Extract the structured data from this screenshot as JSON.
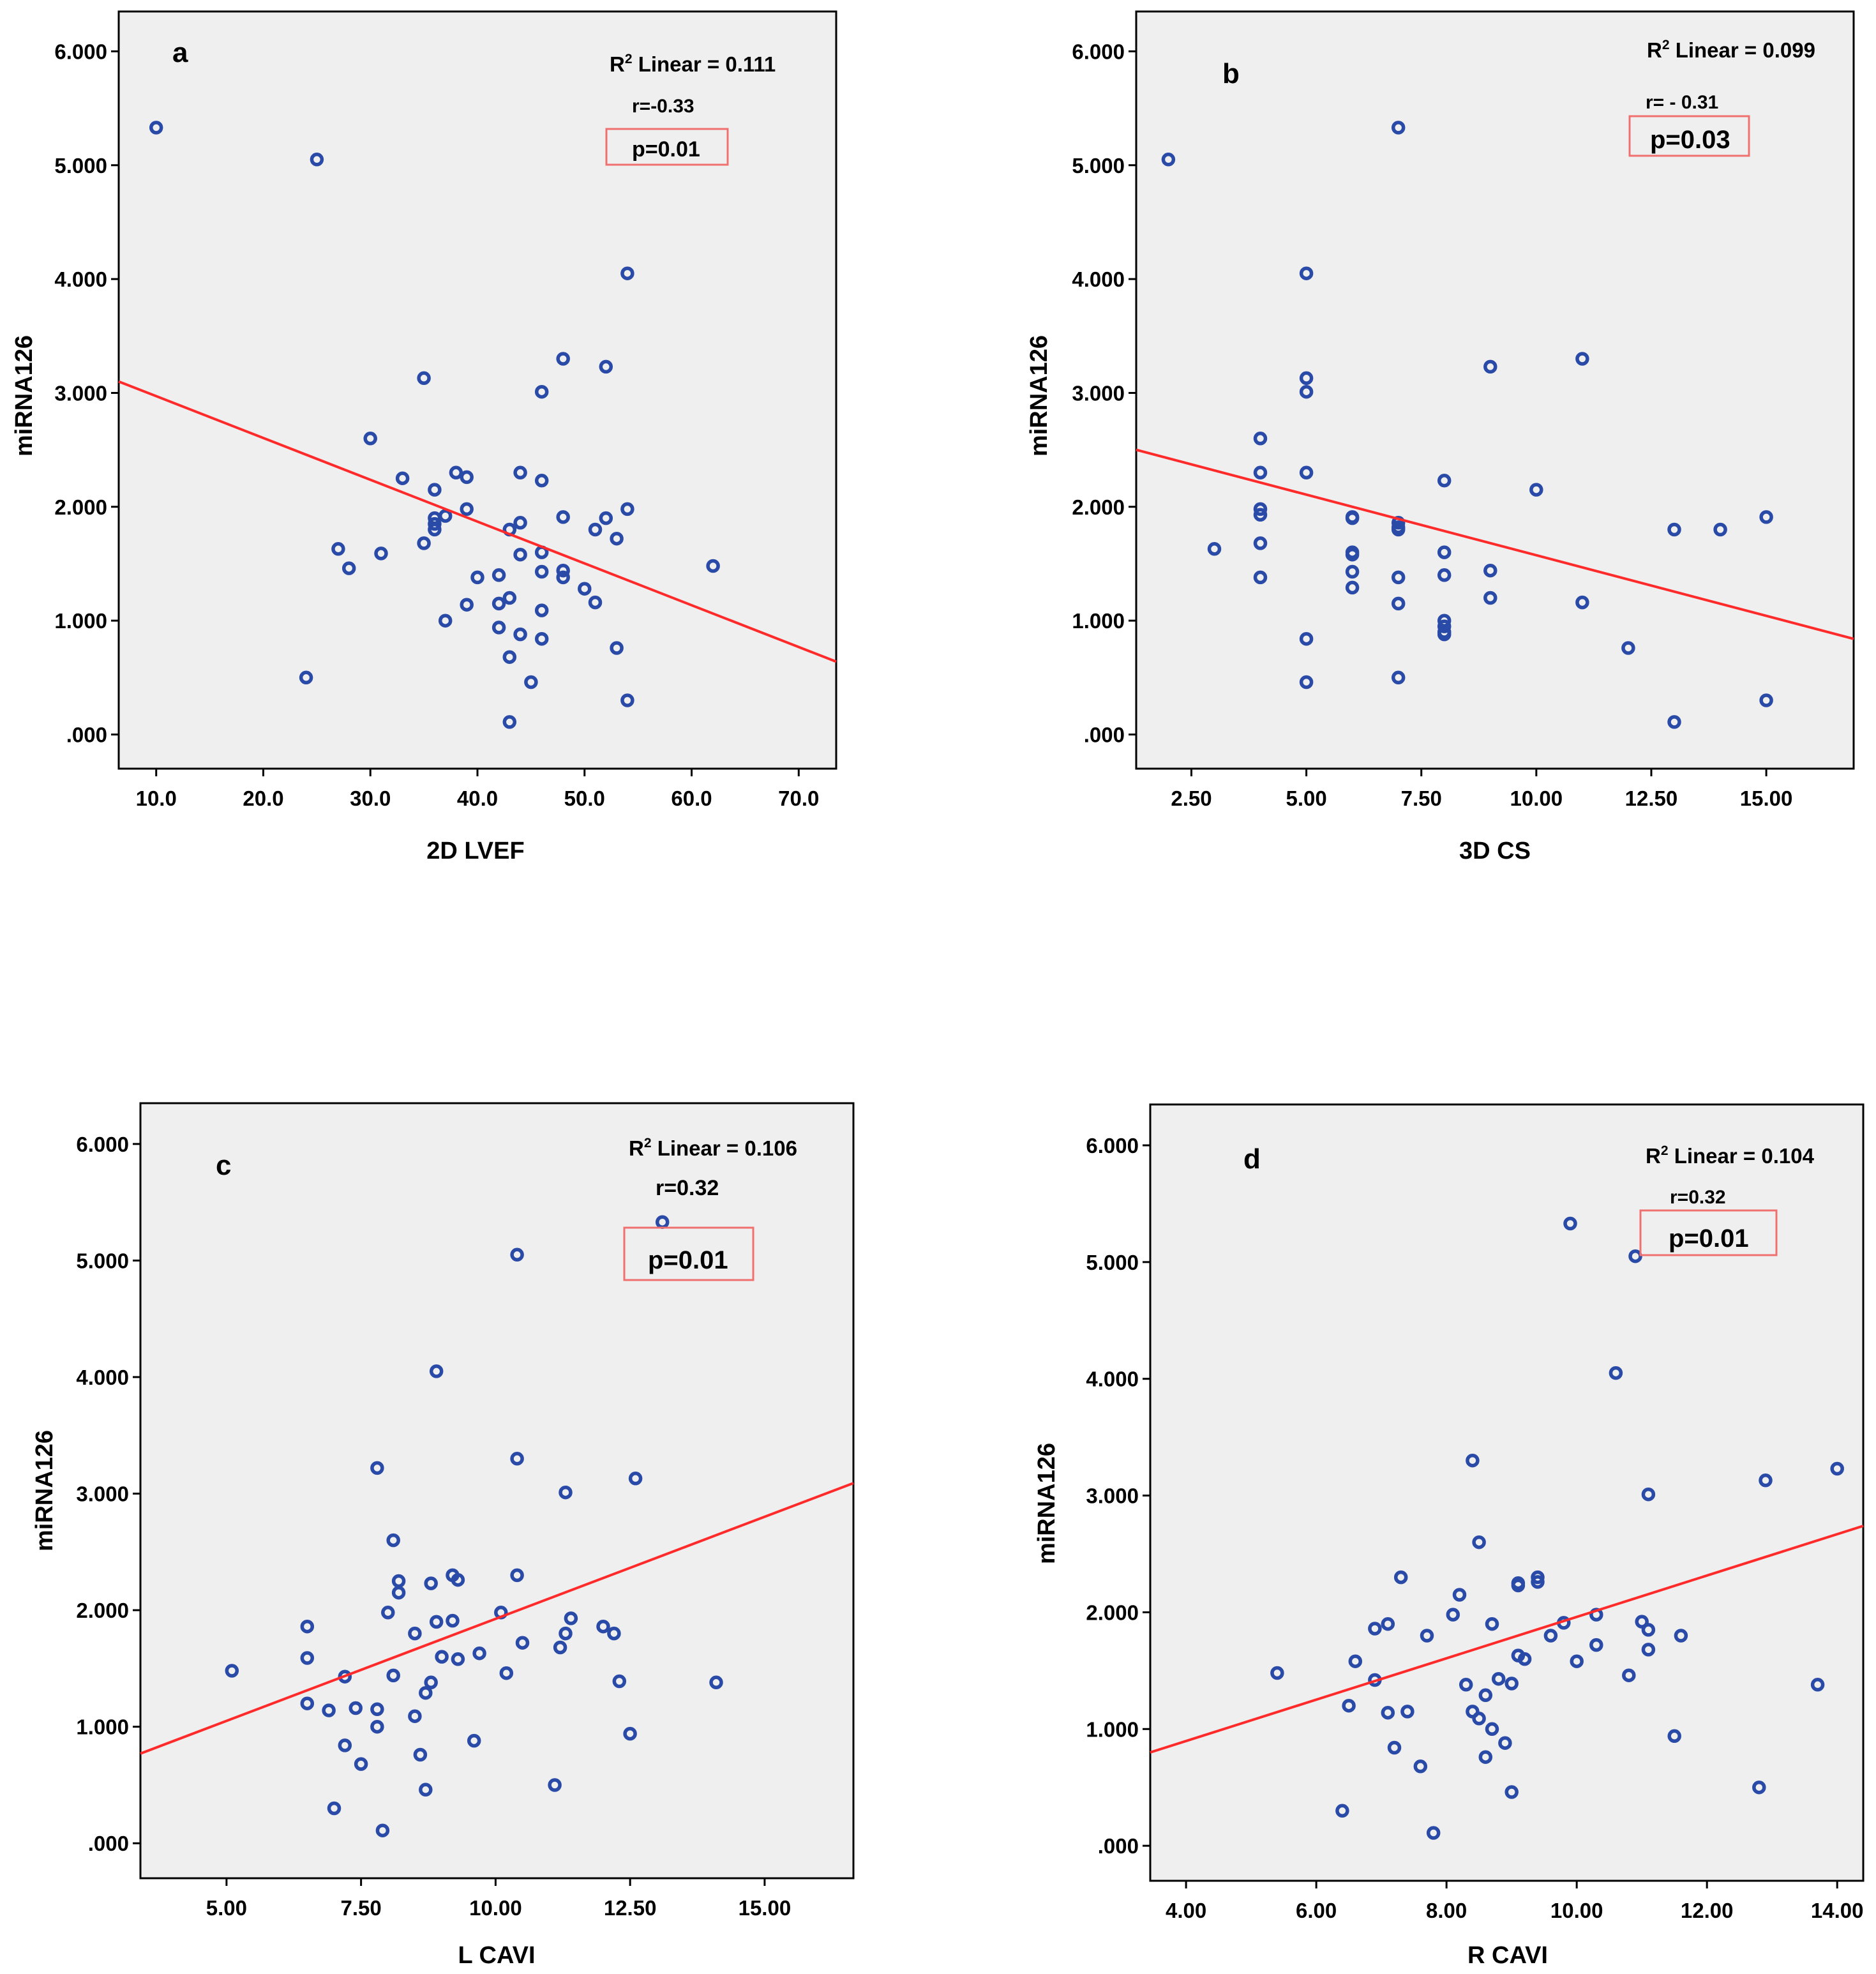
{
  "colors": {
    "plot_bg": "#efefef",
    "points": "#2a4aa8",
    "fit_line": "#ff2a2a",
    "p_box": "#f07070"
  },
  "chart_data": [
    {
      "type": "scatter",
      "panel": "a",
      "xlabel": "2D LVEF",
      "ylabel": "miRNA126",
      "xlim": [
        6.5,
        73.5
      ],
      "ylim": [
        -0.3,
        6.35
      ],
      "xticks": [
        10,
        20,
        30,
        40,
        50,
        60,
        70
      ],
      "xtick_labels": [
        "10.0",
        "20.0",
        "30.0",
        "40.0",
        "50.0",
        "60.0",
        "70.0"
      ],
      "yticks": [
        0,
        1,
        2,
        3,
        4,
        5,
        6
      ],
      "ytick_labels": [
        ".000",
        "1.000",
        "2.000",
        "3.000",
        "4.000",
        "5.000",
        "6.000"
      ],
      "fit_line": [
        [
          6.5,
          3.1
        ],
        [
          73.5,
          0.64
        ]
      ],
      "r2_prefix": "R",
      "r2_sup": "2",
      "r2_text": " Linear = 0.111",
      "r_text": "r=-0.33",
      "p_text": "p=0.01",
      "points": [
        [
          10,
          5.33
        ],
        [
          25,
          5.05
        ],
        [
          24,
          0.5
        ],
        [
          27,
          1.63
        ],
        [
          28,
          1.46
        ],
        [
          30,
          2.6
        ],
        [
          31,
          1.59
        ],
        [
          33,
          2.25
        ],
        [
          35,
          3.13
        ],
        [
          35,
          1.68
        ],
        [
          36,
          2.15
        ],
        [
          36,
          1.9
        ],
        [
          36,
          1.85
        ],
        [
          36,
          1.8
        ],
        [
          37,
          1.92
        ],
        [
          37,
          1.0
        ],
        [
          38,
          2.3
        ],
        [
          39,
          2.26
        ],
        [
          39,
          1.98
        ],
        [
          39,
          1.14
        ],
        [
          40,
          1.38
        ],
        [
          42,
          1.4
        ],
        [
          42,
          1.15
        ],
        [
          42,
          0.94
        ],
        [
          43,
          1.8
        ],
        [
          43,
          1.2
        ],
        [
          43,
          0.68
        ],
        [
          43,
          0.11
        ],
        [
          44,
          2.3
        ],
        [
          44,
          1.86
        ],
        [
          44,
          1.58
        ],
        [
          44,
          0.88
        ],
        [
          45,
          0.46
        ],
        [
          46,
          3.01
        ],
        [
          46,
          2.23
        ],
        [
          46,
          1.6
        ],
        [
          46,
          1.43
        ],
        [
          46,
          1.09
        ],
        [
          46,
          0.84
        ],
        [
          48,
          3.3
        ],
        [
          48,
          1.91
        ],
        [
          48,
          1.44
        ],
        [
          48,
          1.38
        ],
        [
          50,
          1.28
        ],
        [
          51,
          1.8
        ],
        [
          51,
          1.16
        ],
        [
          52,
          3.23
        ],
        [
          52,
          1.9
        ],
        [
          53,
          1.72
        ],
        [
          53,
          0.76
        ],
        [
          54,
          4.05
        ],
        [
          54,
          1.98
        ],
        [
          54,
          0.3
        ],
        [
          62,
          1.48
        ]
      ]
    },
    {
      "type": "scatter",
      "panel": "b",
      "xlabel": "3D CS",
      "ylabel": "miRNA126",
      "xlim": [
        1.3,
        16.9
      ],
      "ylim": [
        -0.3,
        6.35
      ],
      "xticks": [
        2.5,
        5,
        7.5,
        10,
        12.5,
        15
      ],
      "xtick_labels": [
        "2.50",
        "5.00",
        "7.50",
        "10.00",
        "12.50",
        "15.00"
      ],
      "yticks": [
        0,
        1,
        2,
        3,
        4,
        5,
        6
      ],
      "ytick_labels": [
        ".000",
        "1.000",
        "2.000",
        "3.000",
        "4.000",
        "5.000",
        "6.000"
      ],
      "fit_line": [
        [
          1.3,
          2.5
        ],
        [
          16.9,
          0.84
        ]
      ],
      "r2_prefix": "R",
      "r2_sup": "2",
      "r2_text": " Linear = 0.099",
      "r_text": "r= - 0.31",
      "p_text": "p=0.03",
      "points": [
        [
          2,
          5.05
        ],
        [
          3,
          1.63
        ],
        [
          4,
          2.6
        ],
        [
          4,
          2.3
        ],
        [
          4,
          1.98
        ],
        [
          4,
          1.93
        ],
        [
          4,
          1.68
        ],
        [
          4,
          1.38
        ],
        [
          5,
          4.05
        ],
        [
          5,
          3.13
        ],
        [
          5,
          3.01
        ],
        [
          5,
          2.3
        ],
        [
          5,
          0.84
        ],
        [
          5,
          0.46
        ],
        [
          6,
          1.91
        ],
        [
          6,
          1.9
        ],
        [
          6,
          1.6
        ],
        [
          6,
          1.58
        ],
        [
          6,
          1.43
        ],
        [
          6,
          1.29
        ],
        [
          7,
          5.33
        ],
        [
          7,
          1.86
        ],
        [
          7,
          1.82
        ],
        [
          7,
          1.8
        ],
        [
          7,
          1.38
        ],
        [
          7,
          1.15
        ],
        [
          7,
          0.5
        ],
        [
          8,
          2.23
        ],
        [
          8,
          1.6
        ],
        [
          8,
          1.4
        ],
        [
          8,
          1.0
        ],
        [
          8,
          0.95
        ],
        [
          8,
          0.9
        ],
        [
          8,
          0.88
        ],
        [
          9,
          3.23
        ],
        [
          9,
          1.44
        ],
        [
          9,
          1.2
        ],
        [
          10,
          2.15
        ],
        [
          11,
          3.3
        ],
        [
          11,
          1.16
        ],
        [
          12,
          0.76
        ],
        [
          13,
          1.8
        ],
        [
          13,
          0.11
        ],
        [
          14,
          1.8
        ],
        [
          15,
          1.91
        ],
        [
          15,
          0.3
        ]
      ]
    },
    {
      "type": "scatter",
      "panel": "c",
      "xlabel": "L CAVI",
      "ylabel": "miRNA126",
      "xlim": [
        3.4,
        16.65
      ],
      "ylim": [
        -0.3,
        6.35
      ],
      "xticks": [
        5,
        7.5,
        10,
        12.5,
        15
      ],
      "xtick_labels": [
        "5.00",
        "7.50",
        "10.00",
        "12.50",
        "15.00"
      ],
      "yticks": [
        0,
        1,
        2,
        3,
        4,
        5,
        6
      ],
      "ytick_labels": [
        ".000",
        "1.000",
        "2.000",
        "3.000",
        "4.000",
        "5.000",
        "6.000"
      ],
      "fit_line": [
        [
          3.4,
          0.77
        ],
        [
          16.65,
          3.09
        ]
      ],
      "r2_prefix": "R",
      "r2_sup": "2",
      "r2_text": " Linear = 0.106",
      "r_text": "r=0.32",
      "p_text": "p=0.01",
      "points": [
        [
          5.1,
          1.48
        ],
        [
          6.5,
          1.86
        ],
        [
          6.5,
          1.59
        ],
        [
          6.5,
          1.2
        ],
        [
          6.9,
          1.14
        ],
        [
          7.0,
          0.3
        ],
        [
          7.2,
          1.43
        ],
        [
          7.2,
          0.84
        ],
        [
          7.4,
          1.16
        ],
        [
          7.5,
          0.68
        ],
        [
          7.8,
          3.22
        ],
        [
          7.8,
          1.15
        ],
        [
          7.8,
          1.0
        ],
        [
          7.9,
          0.11
        ],
        [
          8.0,
          1.98
        ],
        [
          8.1,
          2.6
        ],
        [
          8.1,
          1.44
        ],
        [
          8.2,
          2.25
        ],
        [
          8.2,
          2.15
        ],
        [
          8.5,
          1.8
        ],
        [
          8.5,
          1.09
        ],
        [
          8.6,
          0.76
        ],
        [
          8.7,
          1.29
        ],
        [
          8.7,
          0.46
        ],
        [
          8.8,
          2.23
        ],
        [
          8.8,
          1.38
        ],
        [
          8.9,
          4.05
        ],
        [
          8.9,
          1.9
        ],
        [
          9.0,
          1.6
        ],
        [
          9.2,
          2.3
        ],
        [
          9.2,
          1.91
        ],
        [
          9.3,
          2.26
        ],
        [
          9.3,
          1.58
        ],
        [
          9.6,
          0.88
        ],
        [
          9.7,
          1.63
        ],
        [
          10.1,
          1.98
        ],
        [
          10.2,
          1.46
        ],
        [
          10.4,
          5.05
        ],
        [
          10.4,
          3.3
        ],
        [
          10.4,
          2.3
        ],
        [
          10.5,
          1.72
        ],
        [
          11.1,
          0.5
        ],
        [
          11.2,
          1.68
        ],
        [
          11.3,
          3.01
        ],
        [
          11.3,
          1.8
        ],
        [
          11.4,
          1.93
        ],
        [
          12.0,
          1.86
        ],
        [
          12.2,
          1.8
        ],
        [
          12.3,
          1.39
        ],
        [
          12.5,
          0.94
        ],
        [
          12.6,
          3.13
        ],
        [
          13.1,
          5.33
        ],
        [
          14.1,
          1.38
        ]
      ]
    },
    {
      "type": "scatter",
      "panel": "d",
      "xlabel": "R CAVI",
      "ylabel": "miRNA126",
      "xlim": [
        3.45,
        14.4
      ],
      "ylim": [
        -0.3,
        6.35
      ],
      "xticks": [
        4,
        6,
        8,
        10,
        12,
        14
      ],
      "xtick_labels": [
        "4.00",
        "6.00",
        "8.00",
        "10.00",
        "12.00",
        "14.00"
      ],
      "yticks": [
        0,
        1,
        2,
        3,
        4,
        5,
        6
      ],
      "ytick_labels": [
        ".000",
        "1.000",
        "2.000",
        "3.000",
        "4.000",
        "5.000",
        "6.000"
      ],
      "fit_line": [
        [
          3.45,
          0.8
        ],
        [
          14.4,
          2.74
        ]
      ],
      "r2_prefix": "R",
      "r2_sup": "2",
      "r2_text": " Linear = 0.104",
      "r_text": "r=0.32",
      "p_text": "p=0.01",
      "points": [
        [
          5.4,
          1.48
        ],
        [
          6.4,
          0.3
        ],
        [
          6.5,
          1.2
        ],
        [
          6.6,
          1.58
        ],
        [
          6.9,
          1.86
        ],
        [
          6.9,
          1.42
        ],
        [
          7.1,
          1.9
        ],
        [
          7.1,
          1.14
        ],
        [
          7.2,
          0.84
        ],
        [
          7.3,
          2.3
        ],
        [
          7.4,
          1.15
        ],
        [
          7.6,
          0.68
        ],
        [
          7.7,
          1.8
        ],
        [
          7.8,
          0.11
        ],
        [
          8.1,
          1.98
        ],
        [
          8.2,
          2.15
        ],
        [
          8.3,
          1.38
        ],
        [
          8.4,
          3.3
        ],
        [
          8.4,
          1.15
        ],
        [
          8.5,
          2.6
        ],
        [
          8.5,
          1.09
        ],
        [
          8.6,
          1.29
        ],
        [
          8.6,
          0.76
        ],
        [
          8.7,
          1.9
        ],
        [
          8.7,
          1.0
        ],
        [
          8.8,
          1.43
        ],
        [
          8.9,
          0.88
        ],
        [
          9.0,
          1.39
        ],
        [
          9.0,
          0.46
        ],
        [
          9.1,
          2.25
        ],
        [
          9.1,
          2.23
        ],
        [
          9.1,
          1.63
        ],
        [
          9.2,
          1.6
        ],
        [
          9.4,
          2.3
        ],
        [
          9.4,
          2.26
        ],
        [
          9.6,
          1.8
        ],
        [
          9.8,
          1.91
        ],
        [
          9.9,
          5.33
        ],
        [
          10.0,
          1.58
        ],
        [
          10.3,
          1.98
        ],
        [
          10.3,
          1.72
        ],
        [
          10.6,
          4.05
        ],
        [
          10.8,
          1.46
        ],
        [
          10.9,
          5.05
        ],
        [
          11.0,
          1.92
        ],
        [
          11.1,
          3.01
        ],
        [
          11.1,
          1.85
        ],
        [
          11.1,
          1.68
        ],
        [
          11.5,
          0.94
        ],
        [
          11.6,
          1.8
        ],
        [
          12.8,
          0.5
        ],
        [
          12.9,
          3.13
        ],
        [
          13.7,
          1.38
        ],
        [
          14.0,
          3.23
        ]
      ]
    }
  ]
}
